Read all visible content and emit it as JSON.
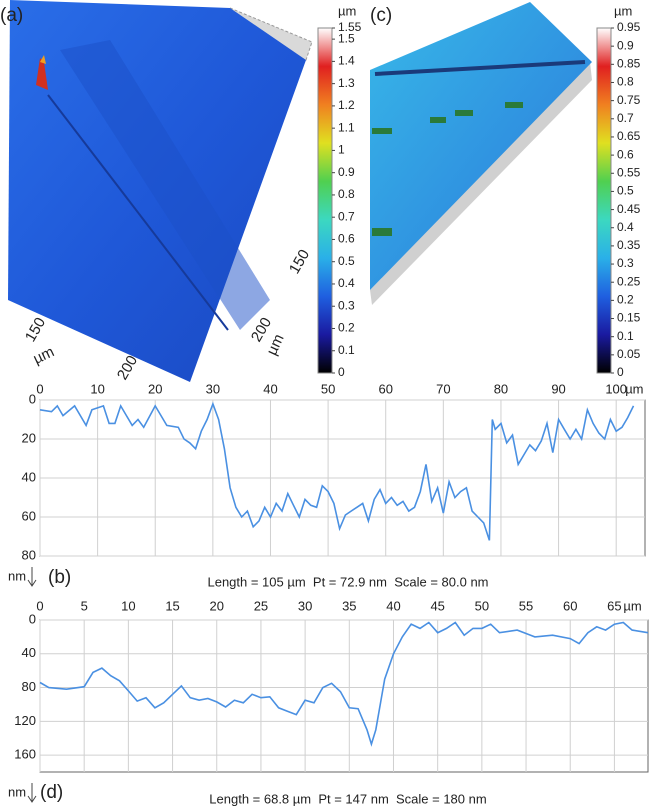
{
  "chart_data": [
    {
      "type": "colorbar",
      "panel": "(a)",
      "unit": "µm",
      "surface_labels": [
        "150",
        "µm",
        "200",
        "150",
        "200",
        "µm"
      ],
      "ylim": [
        0,
        1.55
      ],
      "yticks": [
        0,
        0.1,
        0.2,
        0.3,
        0.4,
        0.5,
        0.6,
        0.7,
        0.8,
        0.9,
        1,
        1.1,
        1.2,
        1.3,
        1.4,
        1.5,
        1.55
      ],
      "colors": [
        "#000000",
        "#1a1aa0",
        "#1f5fe0",
        "#2ab0e8",
        "#3cd8c0",
        "#50d050",
        "#e0e020",
        "#f08020",
        "#e02020",
        "#ffffff"
      ]
    },
    {
      "type": "colorbar",
      "panel": "(c)",
      "unit": "µm",
      "ylim": [
        0,
        0.95
      ],
      "yticks": [
        0,
        0.05,
        0.1,
        0.15,
        0.2,
        0.25,
        0.3,
        0.35,
        0.4,
        0.45,
        0.5,
        0.55,
        0.6,
        0.65,
        0.7,
        0.75,
        0.8,
        0.85,
        0.9,
        0.95
      ],
      "colors": [
        "#000000",
        "#1a1aa0",
        "#1f5fe0",
        "#2ab0e8",
        "#3cd8c0",
        "#50d050",
        "#e0e020",
        "#f08020",
        "#e02020",
        "#ffffff"
      ]
    },
    {
      "type": "line",
      "panel": "(b)",
      "caption": "Length = 105 µm  Pt = 72.9 nm  Scale = 80.0 nm",
      "x_unit": "µm",
      "y_unit": "nm",
      "xlim": [
        0,
        105
      ],
      "xticks": [
        0,
        10,
        20,
        30,
        40,
        50,
        60,
        70,
        80,
        90,
        100
      ],
      "ylim": [
        0,
        80
      ],
      "yticks": [
        0,
        20,
        40,
        60,
        80
      ],
      "y_inverted": true,
      "grid": true,
      "x": [
        0,
        2,
        3,
        4,
        6,
        8,
        9,
        11,
        12,
        13,
        14,
        16,
        17,
        18,
        20,
        21,
        22,
        24,
        25,
        26,
        27,
        28,
        29,
        30,
        31,
        32,
        33,
        34,
        35,
        36,
        37,
        38,
        39,
        40,
        41,
        42,
        43,
        44,
        45,
        46,
        47,
        48,
        49,
        50,
        51,
        52,
        53,
        54,
        55,
        56,
        57,
        58,
        59,
        60,
        61,
        62,
        63,
        64,
        65,
        66,
        67,
        68,
        69,
        70,
        71,
        72,
        73,
        74,
        75,
        76,
        77,
        78,
        78.5,
        79,
        80,
        81,
        82,
        83,
        84,
        85,
        86,
        87,
        88,
        89,
        90,
        91,
        92,
        93,
        94,
        95,
        96,
        97,
        98,
        99,
        100,
        101,
        102,
        103
      ],
      "series": [
        {
          "color": "#4a90e2",
          "values": [
            5,
            6,
            3,
            8,
            3,
            13,
            5,
            3,
            12,
            12,
            3,
            13,
            10,
            14,
            3,
            8,
            13,
            14,
            20,
            22,
            25,
            16,
            10,
            2,
            10,
            25,
            45,
            55,
            60,
            57,
            65,
            62,
            55,
            60,
            53,
            57,
            48,
            54,
            60,
            51,
            54,
            55,
            44,
            47,
            53,
            66,
            59,
            57,
            55,
            53,
            62,
            51,
            46,
            53,
            50,
            54,
            52,
            57,
            55,
            47,
            33,
            52,
            45,
            58,
            42,
            50,
            47,
            45,
            57,
            60,
            63,
            72,
            10,
            15,
            12,
            22,
            18,
            33,
            28,
            23,
            26,
            21,
            12,
            27,
            10,
            15,
            20,
            15,
            20,
            5,
            12,
            17,
            20,
            10,
            16,
            14,
            9,
            3
          ]
        }
      ]
    },
    {
      "type": "line",
      "panel": "(d)",
      "caption": "Length = 68.8 µm  Pt = 147 nm  Scale = 180 nm",
      "x_unit": "µm",
      "y_unit": "nm",
      "xlim": [
        0,
        68.8
      ],
      "xticks": [
        0,
        5,
        10,
        15,
        20,
        25,
        30,
        35,
        40,
        45,
        50,
        55,
        60,
        65
      ],
      "ylim": [
        0,
        180
      ],
      "yticks": [
        0,
        40,
        80,
        120,
        160
      ],
      "y_inverted": true,
      "grid": true,
      "x": [
        0,
        1,
        3,
        5,
        6,
        7,
        8,
        9,
        10,
        11,
        12,
        13,
        14,
        15,
        16,
        17,
        18,
        19,
        20,
        21,
        22,
        23,
        24,
        25,
        26,
        27,
        28,
        29,
        30,
        31,
        32,
        33,
        34,
        35,
        36,
        37,
        37.5,
        38,
        39,
        40,
        41,
        42,
        43,
        44,
        45,
        46,
        47,
        48,
        49,
        50,
        51,
        52,
        54,
        56,
        58,
        60,
        61,
        62,
        63,
        64,
        65,
        66,
        67,
        68.8
      ],
      "series": [
        {
          "color": "#4a90e2",
          "values": [
            74,
            80,
            82,
            79,
            62,
            57,
            66,
            72,
            84,
            96,
            92,
            104,
            98,
            88,
            78,
            92,
            95,
            93,
            97,
            103,
            95,
            98,
            88,
            92,
            91,
            104,
            108,
            112,
            95,
            98,
            80,
            75,
            85,
            104,
            105,
            130,
            147,
            130,
            70,
            40,
            20,
            5,
            10,
            3,
            15,
            10,
            3,
            18,
            10,
            10,
            5,
            15,
            12,
            20,
            18,
            22,
            28,
            15,
            8,
            12,
            5,
            3,
            12,
            15
          ]
        }
      ]
    }
  ]
}
